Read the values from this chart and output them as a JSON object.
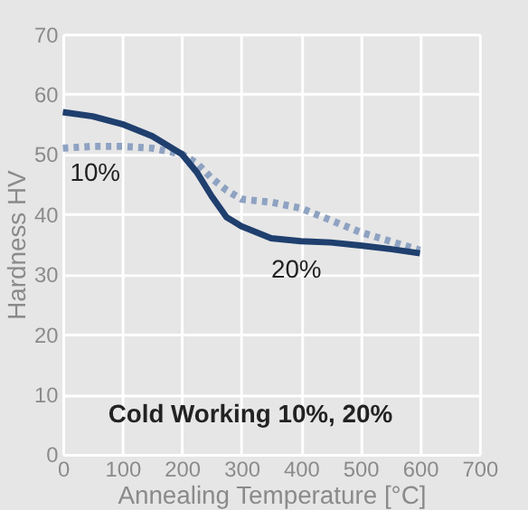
{
  "chart_data": {
    "type": "line",
    "xlabel": "Annealing Temperature [°C]",
    "ylabel": "Hardness HV",
    "annotations": [
      "Cold Working 10%, 20%"
    ],
    "x": [
      0,
      50,
      100,
      150,
      200,
      225,
      250,
      275,
      300,
      350,
      400,
      450,
      500,
      550,
      600
    ],
    "series": [
      {
        "name": "10%",
        "color": "#8ea2c2",
        "line_style": "dotted",
        "values": [
          51,
          51.3,
          51.3,
          51,
          50,
          48.5,
          46,
          44,
          42.5,
          42,
          41,
          39,
          37,
          35.5,
          34
        ]
      },
      {
        "name": "20%",
        "color": "#1f3f6e",
        "line_style": "solid",
        "values": [
          57,
          56.3,
          55,
          53,
          50,
          47,
          43,
          39.5,
          38,
          36,
          35.5,
          35.3,
          34.8,
          34.2,
          33.5
        ]
      }
    ],
    "xlim": [
      0,
      700
    ],
    "xticks": [
      0,
      100,
      200,
      300,
      400,
      500,
      600,
      700
    ],
    "ylim": [
      0,
      70
    ],
    "yticks": [
      0,
      10,
      20,
      30,
      40,
      50,
      60,
      70
    ],
    "grid": true,
    "marker": "none"
  }
}
